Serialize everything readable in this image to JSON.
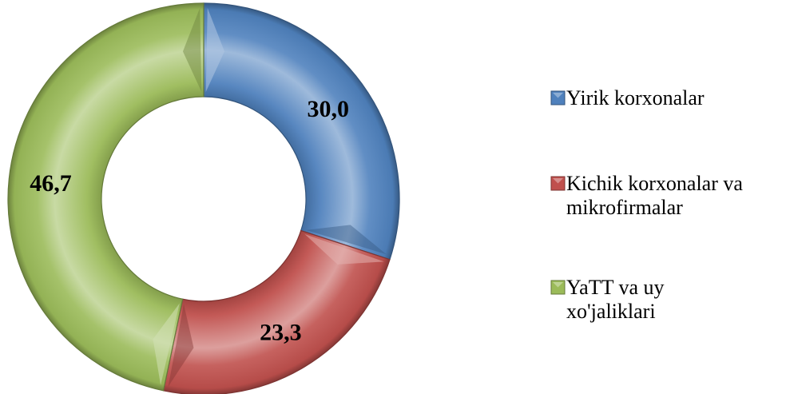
{
  "chart_data": {
    "type": "pie",
    "subtype": "doughnut",
    "title": "",
    "categories": [
      "Yirik korxonalar",
      "Kichik korxonalar va mikrofirmalar",
      "YaTT va uy xo'jaliklari"
    ],
    "values": [
      30.0,
      23.3,
      46.7
    ],
    "data_labels": [
      "30,0",
      "23,3",
      "46,7"
    ],
    "legend": {
      "position": "right",
      "entries": [
        {
          "lines": [
            "Yirik korxonalar"
          ]
        },
        {
          "lines": [
            "Kichik korxonalar va",
            "mikrofirmalar"
          ]
        },
        {
          "lines": [
            "YaTT va uy",
            "xo'jaliklari"
          ]
        }
      ]
    },
    "colors": [
      "#4F81BD",
      "#C0504D",
      "#9BBB59"
    ]
  }
}
